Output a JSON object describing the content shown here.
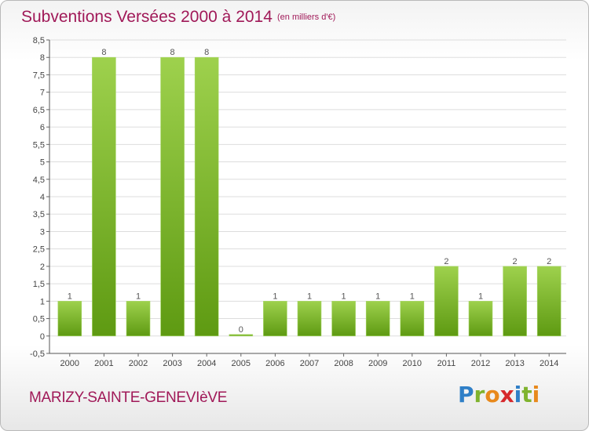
{
  "header": {
    "title": "Subventions Versées 2000 à 2014",
    "subtitle": "(en milliers d'€)"
  },
  "footer": {
    "commune": "MARIZY-SAINTE-GENEVIèVE",
    "logo": [
      {
        "ch": "P",
        "color": "#2f7fc7"
      },
      {
        "ch": "r",
        "color": "#7fb32e"
      },
      {
        "ch": "o",
        "color": "#e8891c"
      },
      {
        "ch": "x",
        "color": "#d6282c"
      },
      {
        "ch": "i",
        "color": "#2f7fc7"
      },
      {
        "ch": "t",
        "color": "#7fb32e"
      },
      {
        "ch": "i",
        "color": "#e8891c"
      }
    ]
  },
  "colors": {
    "bar_top": "#9ed14d",
    "bar_bottom": "#5e9a12",
    "grid": "#dddddd",
    "title": "#a01958"
  },
  "chart_data": {
    "type": "bar",
    "title": "Subventions Versées 2000 à 2014",
    "subtitle": "(en milliers d'€)",
    "categories": [
      "2000",
      "2001",
      "2002",
      "2003",
      "2004",
      "2005",
      "2006",
      "2007",
      "2008",
      "2009",
      "2010",
      "2011",
      "2012",
      "2013",
      "2014"
    ],
    "values": [
      1,
      8,
      1,
      8,
      8,
      0,
      1,
      1,
      1,
      1,
      1,
      2,
      1,
      2,
      2
    ],
    "data_labels": [
      "1",
      "8",
      "1",
      "8",
      "8",
      "0",
      "1",
      "1",
      "1",
      "1",
      "1",
      "2",
      "1",
      "2",
      "2"
    ],
    "ylim": [
      -0.5,
      8.5
    ],
    "yticks": [
      "-0,5",
      "0",
      "0,5",
      "1",
      "1,5",
      "2",
      "2,5",
      "3",
      "3,5",
      "4",
      "4,5",
      "5",
      "5,5",
      "6",
      "6,5",
      "7",
      "7,5",
      "8",
      "8,5"
    ],
    "ytick_values": [
      -0.5,
      0,
      0.5,
      1,
      1.5,
      2,
      2.5,
      3,
      3.5,
      4,
      4.5,
      5,
      5.5,
      6,
      6.5,
      7,
      7.5,
      8,
      8.5
    ],
    "grid": true,
    "legend": "none"
  }
}
